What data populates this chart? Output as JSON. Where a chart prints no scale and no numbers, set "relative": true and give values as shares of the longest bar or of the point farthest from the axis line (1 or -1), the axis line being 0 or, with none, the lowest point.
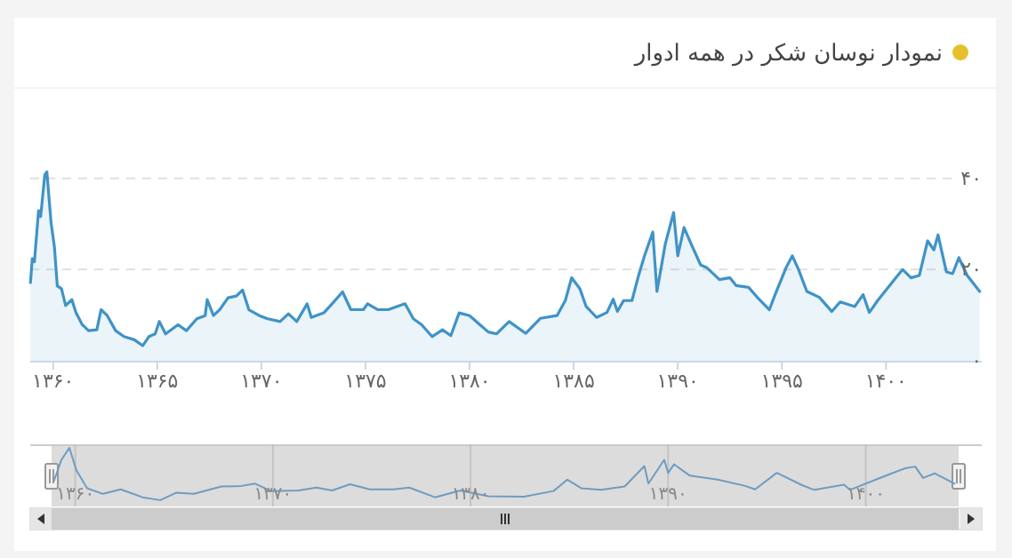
{
  "chart_data": [
    {
      "type": "area",
      "title": "نمودار نوسان شکر در همه ادوار",
      "color": "#3f93c8",
      "grid": "y",
      "xlim": [
        1358.9,
        1404.6
      ],
      "ylim": [
        0,
        59.7
      ],
      "xticks": [
        {
          "value": 1360,
          "label": "۱۳۶۰"
        },
        {
          "value": 1365,
          "label": "۱۳۶۵"
        },
        {
          "value": 1370,
          "label": "۱۳۷۰"
        },
        {
          "value": 1375,
          "label": "۱۳۷۵"
        },
        {
          "value": 1380,
          "label": "۱۳۸۰"
        },
        {
          "value": 1385,
          "label": "۱۳۸۵"
        },
        {
          "value": 1390,
          "label": "۱۳۹۰"
        },
        {
          "value": 1395,
          "label": "۱۳۹۵"
        },
        {
          "value": 1400,
          "label": "۱۴۰۰"
        }
      ],
      "yticks": [
        {
          "value": 0,
          "label": "۰"
        },
        {
          "value": 20,
          "label": "۲۰"
        },
        {
          "value": 40,
          "label": "۴۰"
        }
      ],
      "x": [
        1358.91,
        1359.0,
        1359.1,
        1359.3,
        1359.4,
        1359.6,
        1359.7,
        1359.9,
        1360.06,
        1360.2,
        1360.4,
        1360.6,
        1360.9,
        1361.1,
        1361.4,
        1361.7,
        1362.1,
        1362.3,
        1362.6,
        1363.0,
        1363.4,
        1363.9,
        1364.3,
        1364.6,
        1364.9,
        1365.1,
        1365.4,
        1366.0,
        1366.4,
        1366.9,
        1367.3,
        1367.4,
        1367.7,
        1368.0,
        1368.4,
        1368.8,
        1369.1,
        1369.4,
        1369.9,
        1370.3,
        1370.9,
        1371.3,
        1371.7,
        1372.2,
        1372.4,
        1373.0,
        1373.4,
        1373.9,
        1374.3,
        1374.9,
        1375.1,
        1375.6,
        1376.1,
        1376.9,
        1377.3,
        1377.7,
        1378.2,
        1378.7,
        1379.1,
        1379.5,
        1380.0,
        1380.5,
        1380.9,
        1381.3,
        1381.9,
        1382.7,
        1383.4,
        1384.2,
        1384.6,
        1384.9,
        1385.3,
        1385.6,
        1386.1,
        1386.6,
        1386.9,
        1387.1,
        1387.4,
        1387.8,
        1388.1,
        1388.4,
        1388.8,
        1389.0,
        1389.4,
        1389.8,
        1390.0,
        1390.3,
        1390.7,
        1391.1,
        1391.4,
        1392.0,
        1392.5,
        1392.8,
        1393.4,
        1393.9,
        1394.4,
        1394.7,
        1395.2,
        1395.5,
        1395.8,
        1396.2,
        1396.8,
        1397.4,
        1397.8,
        1398.5,
        1398.9,
        1399.2,
        1399.6,
        1400.4,
        1400.8,
        1401.2,
        1401.6,
        1402.0,
        1402.3,
        1402.5,
        1402.9,
        1403.2,
        1403.5,
        1403.9,
        1404.5
      ],
      "values": [
        17.1,
        22.4,
        21.7,
        32.9,
        31.6,
        40.8,
        41.4,
        30.3,
        25,
        16.4,
        15.8,
        12.1,
        13.4,
        10.5,
        7.9,
        6.6,
        6.8,
        11.2,
        9.9,
        6.6,
        5.3,
        4.6,
        3.3,
        5.3,
        5.9,
        8.6,
        5.9,
        7.9,
        6.6,
        9.2,
        9.9,
        13.4,
        9.9,
        11.2,
        13.8,
        14.2,
        15.5,
        11.2,
        9.9,
        9.2,
        8.6,
        10.3,
        8.6,
        12.5,
        9.5,
        10.5,
        12.5,
        15.1,
        11.2,
        11.2,
        12.5,
        11.2,
        11.2,
        12.5,
        9.2,
        7.9,
        5.3,
        6.8,
        5.5,
        10.5,
        9.9,
        7.9,
        6.3,
        5.9,
        8.6,
        6.0,
        9.3,
        9.9,
        13.2,
        18.2,
        15.8,
        11.9,
        9.5,
        10.6,
        13.5,
        10.8,
        13.2,
        13.2,
        18.4,
        23.0,
        28.2,
        15.2,
        25.6,
        32.5,
        23.0,
        29.2,
        25.0,
        21.0,
        20.4,
        17.8,
        18.2,
        16.5,
        16.1,
        13.5,
        11.2,
        14.8,
        20.4,
        23.0,
        20.0,
        15.2,
        13.9,
        10.8,
        12.9,
        11.9,
        14.5,
        10.6,
        13.2,
        17.8,
        20.0,
        18.2,
        18.7,
        26.3,
        24.3,
        27.6,
        19.5,
        19.1,
        22.6,
        18.7,
        15.2
      ]
    },
    {
      "type": "line",
      "relative": true,
      "color": "#6f9cc0",
      "grid": "x",
      "tick_labels": "x",
      "xlim": [
        1358.8,
        1404.7
      ],
      "xticks": [
        {
          "value": 1360,
          "label": "۱۳۶۰"
        },
        {
          "value": 1370,
          "label": "۱۳۷۰"
        },
        {
          "value": 1380,
          "label": "۱۳۸۰"
        },
        {
          "value": 1390,
          "label": "۱۳۹۰"
        },
        {
          "value": 1400,
          "label": "۱۴۰۰"
        }
      ],
      "x": [
        1358.91,
        1359.3,
        1359.7,
        1360.06,
        1360.6,
        1361.4,
        1362.3,
        1363.4,
        1364.3,
        1365.1,
        1366.0,
        1367.4,
        1368.4,
        1369.1,
        1369.9,
        1371.3,
        1372.2,
        1373.0,
        1373.9,
        1374.9,
        1376.1,
        1376.9,
        1378.2,
        1379.5,
        1380.9,
        1382.7,
        1384.2,
        1384.9,
        1385.6,
        1386.6,
        1387.8,
        1388.8,
        1389.0,
        1389.8,
        1390.0,
        1390.3,
        1391.1,
        1392.5,
        1393.9,
        1394.4,
        1395.5,
        1396.8,
        1397.4,
        1398.9,
        1399.2,
        1400.8,
        1402.0,
        1402.5,
        1402.9,
        1403.5,
        1404.5
      ],
      "values": [
        0.41,
        0.79,
        1,
        0.6,
        0.29,
        0.19,
        0.27,
        0.13,
        0.08,
        0.21,
        0.19,
        0.32,
        0.33,
        0.37,
        0.24,
        0.25,
        0.3,
        0.25,
        0.36,
        0.27,
        0.27,
        0.3,
        0.13,
        0.25,
        0.15,
        0.14,
        0.24,
        0.44,
        0.29,
        0.26,
        0.32,
        0.68,
        0.37,
        0.79,
        0.56,
        0.71,
        0.51,
        0.44,
        0.33,
        0.27,
        0.56,
        0.34,
        0.26,
        0.35,
        0.26,
        0.48,
        0.64,
        0.67,
        0.47,
        0.55,
        0.37
      ]
    }
  ]
}
